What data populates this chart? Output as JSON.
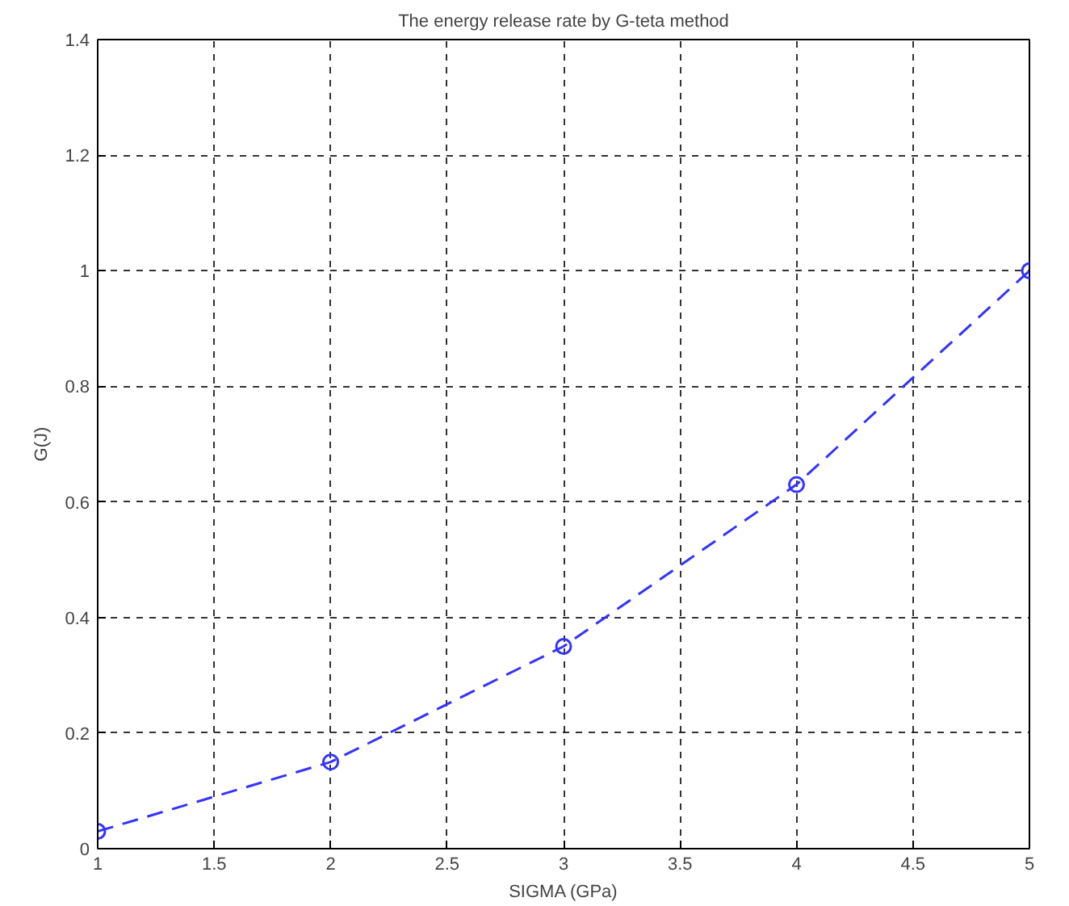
{
  "chart_data": {
    "type": "line",
    "title": "The energy release rate by G-teta method",
    "xlabel": "SIGMA (GPa)",
    "ylabel": "G(J)",
    "x": [
      1,
      2,
      3,
      4,
      5
    ],
    "series": [
      {
        "color": "#3333ff",
        "values": [
          0.03,
          0.15,
          0.35,
          0.63,
          1.0
        ]
      }
    ],
    "xlim": [
      1,
      5
    ],
    "ylim": [
      0,
      1.4
    ],
    "xticks": [
      1,
      1.5,
      2,
      2.5,
      3,
      3.5,
      4,
      4.5,
      5
    ],
    "yticks": [
      0,
      0.2,
      0.4,
      0.6,
      0.8,
      1,
      1.2,
      1.4
    ],
    "grid": true,
    "marker": "circle",
    "line_style": "dashed"
  }
}
